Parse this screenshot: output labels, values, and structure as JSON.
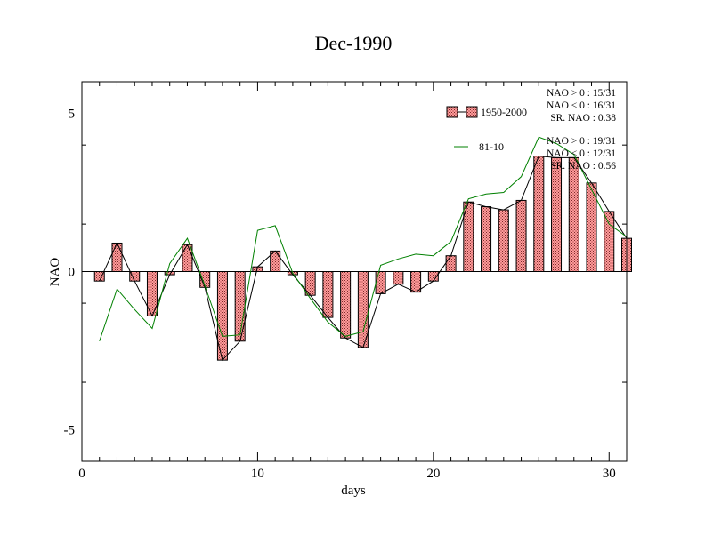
{
  "chart_data": {
    "type": "bar",
    "title": "Dec-1990",
    "xlabel": "days",
    "ylabel": "NAO",
    "xlim": [
      0,
      31
    ],
    "ylim": [
      -6,
      6
    ],
    "xticks": [
      0,
      10,
      20,
      30
    ],
    "yticks": [
      -5,
      0,
      5
    ],
    "grid": false,
    "legend_position": "top-right",
    "x": [
      1,
      2,
      3,
      4,
      5,
      6,
      7,
      8,
      9,
      10,
      11,
      12,
      13,
      14,
      15,
      16,
      17,
      18,
      19,
      20,
      21,
      22,
      23,
      24,
      25,
      26,
      27,
      28,
      29,
      30,
      31
    ],
    "series": [
      {
        "name": "1950-2000",
        "kind": "bar",
        "color": "#ff9a9a",
        "values": [
          -0.3,
          0.9,
          -0.3,
          -1.4,
          -0.1,
          0.85,
          -0.5,
          -2.8,
          -2.2,
          0.15,
          0.65,
          -0.1,
          -0.75,
          -1.45,
          -2.1,
          -2.4,
          -0.7,
          -0.4,
          -0.65,
          -0.3,
          0.5,
          2.2,
          2.05,
          1.95,
          2.25,
          3.65,
          3.6,
          3.6,
          2.8,
          1.9,
          1.05
        ]
      },
      {
        "name": "81-10",
        "kind": "line",
        "color": "#008000",
        "values": [
          -2.2,
          -0.55,
          -1.2,
          -1.8,
          0.25,
          1.05,
          -0.45,
          -2.05,
          -2.0,
          1.3,
          1.45,
          -0.05,
          -0.85,
          -1.6,
          -2.05,
          -1.9,
          0.2,
          0.4,
          0.55,
          0.5,
          0.95,
          2.3,
          2.45,
          2.5,
          3.0,
          4.25,
          4.05,
          3.7,
          2.6,
          1.5,
          1.1
        ]
      }
    ],
    "stats": [
      {
        "series": "1950-2000",
        "lines": [
          "NAO > 0 : 15/31",
          "NAO < 0 : 16/31",
          "SR. NAO :  0.38"
        ]
      },
      {
        "series": "81-10",
        "lines": [
          "NAO > 0 : 19/31",
          "NAO < 0 : 12/31",
          "SR. NAO :  0.56"
        ]
      }
    ]
  }
}
